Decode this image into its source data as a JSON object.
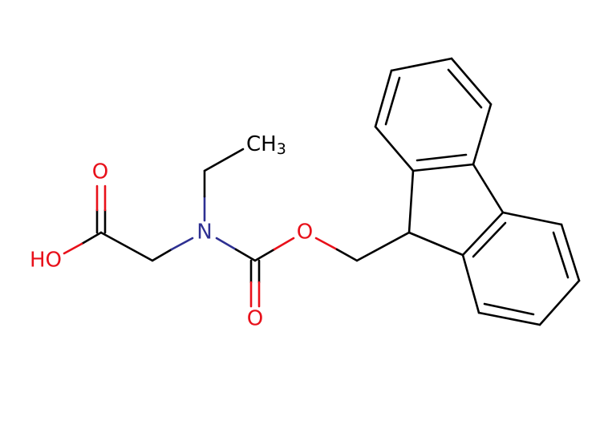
{
  "atoms": [
    {
      "label": "O"
    },
    {
      "label": "HO"
    },
    {
      "label": "N"
    },
    {
      "label": "CH",
      "subscript": "3"
    },
    {
      "label": "O"
    },
    {
      "label": "O"
    }
  ]
}
